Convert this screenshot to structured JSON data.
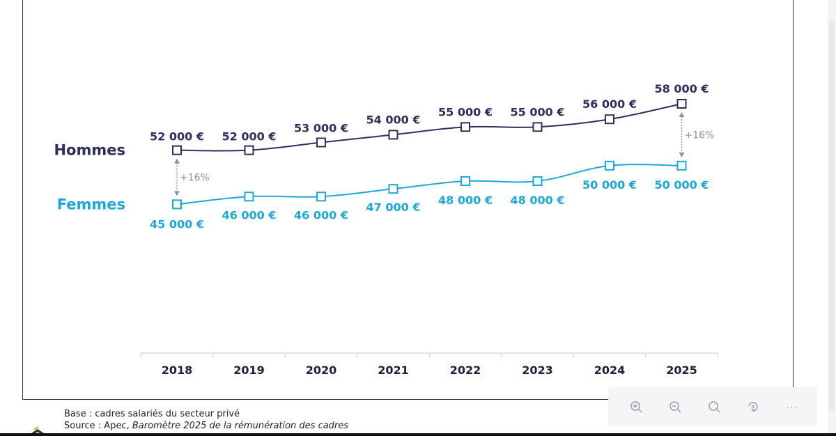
{
  "chart_data": {
    "type": "line",
    "categories": [
      "2018",
      "2019",
      "2020",
      "2021",
      "2022",
      "2023",
      "2024",
      "2025"
    ],
    "series": [
      {
        "name": "Hommes",
        "values": [
          52000,
          52000,
          53000,
          54000,
          55000,
          55000,
          56000,
          58000
        ],
        "labels": [
          "52 000 €",
          "52 000 €",
          "53 000 €",
          "54 000 €",
          "55 000 €",
          "55 000 €",
          "56 000 €",
          "58 000 €"
        ],
        "color": "#2d2f5e"
      },
      {
        "name": "Femmes",
        "values": [
          45000,
          46000,
          46000,
          47000,
          48000,
          48000,
          50000,
          50000
        ],
        "labels": [
          "45 000 €",
          "46 000 €",
          "46 000 €",
          "47 000 €",
          "48 000 €",
          "48 000 €",
          "50 000 €",
          "50 000 €"
        ],
        "color": "#1aa8d6"
      }
    ],
    "annotations": [
      {
        "category": "2018",
        "text": "+16%"
      },
      {
        "category": "2025",
        "text": "+16%"
      }
    ],
    "ylim": [
      39000,
      58000
    ],
    "grid": false
  },
  "colors": {
    "frame": "#2d2f5e",
    "annotation": "#8f90ad",
    "axis": "#c8c8d0"
  },
  "footer": {
    "base": "Base : cadres salariés du secteur privé",
    "source_prefix": "Source : Apec, ",
    "source_title": "Baromètre 2025 de la rémunération des cadres"
  },
  "toolbar": {
    "zoom_in_icon": "zoom-in-icon",
    "zoom_out_icon": "zoom-out-icon",
    "search_icon": "search-icon",
    "rotate_icon": "rotate-icon",
    "more_label": "···"
  }
}
